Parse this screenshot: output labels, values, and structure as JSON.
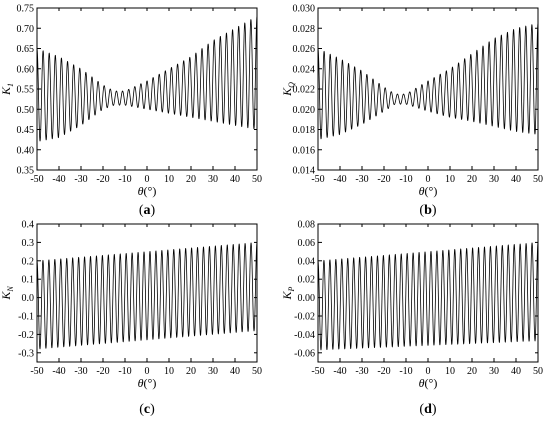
{
  "chart_data": [
    {
      "type": "line",
      "panel_label": "a",
      "ylabel_main": "K",
      "ylabel_sub": "1",
      "xlabel_main": "θ",
      "xlabel_unit": "(°)",
      "xlim": [
        -50,
        50
      ],
      "xticks": [
        -50,
        -40,
        -30,
        -20,
        -10,
        0,
        10,
        20,
        30,
        40,
        50
      ],
      "ylim": [
        0.35,
        0.75
      ],
      "yticks": [
        "0.35",
        "0.40",
        "0.45",
        "0.50",
        "0.55",
        "0.60",
        "0.65",
        "0.70",
        "0.75"
      ],
      "grid": false,
      "series": [
        {
          "cycles": 36,
          "envelope_x": [
            -50,
            -40,
            -30,
            -20,
            -15,
            -10,
            0,
            10,
            20,
            30,
            40,
            50
          ],
          "upper": [
            0.65,
            0.63,
            0.6,
            0.56,
            0.545,
            0.545,
            0.57,
            0.6,
            0.63,
            0.67,
            0.7,
            0.73
          ],
          "lower": [
            0.42,
            0.43,
            0.46,
            0.5,
            0.51,
            0.51,
            0.5,
            0.49,
            0.48,
            0.47,
            0.46,
            0.45
          ]
        }
      ]
    },
    {
      "type": "line",
      "panel_label": "b",
      "ylabel_main": "K",
      "ylabel_sub": "Q",
      "xlabel_main": "θ",
      "xlabel_unit": "(°)",
      "xlim": [
        -50,
        50
      ],
      "xticks": [
        -50,
        -40,
        -30,
        -20,
        -10,
        0,
        10,
        20,
        30,
        40,
        50
      ],
      "ylim": [
        0.014,
        0.03
      ],
      "yticks": [
        "0.014",
        "0.016",
        "0.018",
        "0.020",
        "0.022",
        "0.024",
        "0.026",
        "0.028",
        "0.030"
      ],
      "grid": false,
      "series": [
        {
          "cycles": 36,
          "envelope_x": [
            -50,
            -40,
            -30,
            -20,
            -15,
            -10,
            0,
            10,
            20,
            30,
            40,
            50
          ],
          "upper": [
            0.026,
            0.025,
            0.0238,
            0.0222,
            0.0215,
            0.0215,
            0.0228,
            0.024,
            0.0255,
            0.027,
            0.028,
            0.0285
          ],
          "lower": [
            0.017,
            0.0175,
            0.0185,
            0.0198,
            0.0205,
            0.0205,
            0.0198,
            0.0192,
            0.0188,
            0.0183,
            0.0178,
            0.0175
          ]
        }
      ]
    },
    {
      "type": "line",
      "panel_label": "c",
      "ylabel_main": "K",
      "ylabel_sub": "N",
      "xlabel_main": "θ",
      "xlabel_unit": "(°)",
      "xlim": [
        -50,
        50
      ],
      "xticks": [
        -50,
        -40,
        -30,
        -20,
        -10,
        0,
        10,
        20,
        30,
        40,
        50
      ],
      "ylim": [
        -0.35,
        0.4
      ],
      "yticks": [
        "-0.3",
        "-0.2",
        "-0.1",
        "0.0",
        "0.1",
        "0.2",
        "0.3",
        "0.4"
      ],
      "grid": false,
      "series": [
        {
          "cycles": 37,
          "envelope_x": [
            -50,
            0,
            50
          ],
          "upper": [
            0.2,
            0.25,
            0.3
          ],
          "lower": [
            -0.28,
            -0.23,
            -0.18
          ]
        }
      ]
    },
    {
      "type": "line",
      "panel_label": "d",
      "ylabel_main": "K",
      "ylabel_sub": "P",
      "xlabel_main": "θ",
      "xlabel_unit": "(°)",
      "xlim": [
        -50,
        50
      ],
      "xticks": [
        -50,
        -40,
        -30,
        -20,
        -10,
        0,
        10,
        20,
        30,
        40,
        50
      ],
      "ylim": [
        -0.07,
        0.08
      ],
      "yticks": [
        "-0.06",
        "-0.04",
        "-0.02",
        "0.00",
        "0.02",
        "0.04",
        "0.06",
        "0.08"
      ],
      "grid": false,
      "series": [
        {
          "cycles": 37,
          "envelope_x": [
            -50,
            0,
            50
          ],
          "upper": [
            0.04,
            0.05,
            0.06
          ],
          "lower": [
            -0.057,
            -0.052,
            -0.047
          ]
        }
      ]
    }
  ]
}
